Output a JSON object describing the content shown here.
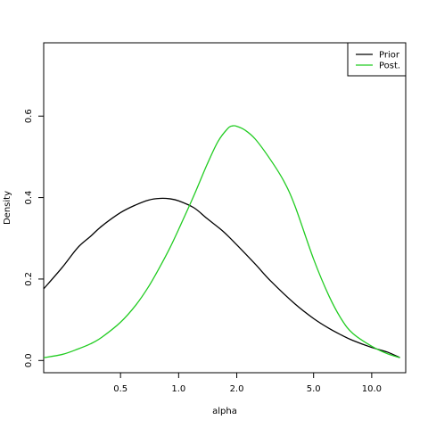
{
  "chart_data": {
    "type": "line",
    "title": "",
    "xlabel": "alpha",
    "ylabel": "Density",
    "x_scale": "log",
    "xlim": [
      0.2,
      15
    ],
    "ylim": [
      -0.03,
      0.78
    ],
    "x_ticks": [
      0.5,
      1.0,
      2.0,
      5.0,
      10.0
    ],
    "x_tick_labels": [
      "0.5",
      "1.0",
      "2.0",
      "5.0",
      "10.0"
    ],
    "y_ticks": [
      0.0,
      0.2,
      0.4,
      0.6
    ],
    "y_tick_labels": [
      "0.0",
      "0.2",
      "0.4",
      "0.6"
    ],
    "grid": false,
    "legend": {
      "position": "top-right",
      "entries": [
        "Prior",
        "Post."
      ]
    },
    "series": [
      {
        "name": "Prior",
        "color": "#000000",
        "x": [
          0.2,
          0.25,
          0.3,
          0.35,
          0.4,
          0.5,
          0.6,
          0.7,
          0.8,
          0.9,
          1.0,
          1.2,
          1.4,
          1.7,
          2.0,
          2.5,
          3.0,
          4.0,
          5.0,
          6.0,
          7.0,
          8.0,
          10.0,
          12.0,
          14.0
        ],
        "values": [
          0.176,
          0.229,
          0.277,
          0.305,
          0.33,
          0.363,
          0.382,
          0.394,
          0.398,
          0.397,
          0.392,
          0.375,
          0.349,
          0.317,
          0.284,
          0.236,
          0.195,
          0.139,
          0.103,
          0.079,
          0.062,
          0.049,
          0.032,
          0.021,
          0.007
        ]
      },
      {
        "name": "Post.",
        "color": "#22cc22",
        "x": [
          0.2,
          0.25,
          0.3,
          0.35,
          0.4,
          0.5,
          0.6,
          0.7,
          0.8,
          0.9,
          1.0,
          1.2,
          1.4,
          1.6,
          1.8,
          1.9,
          2.0,
          2.2,
          2.5,
          3.0,
          3.5,
          4.0,
          5.0,
          6.0,
          7.0,
          8.0,
          10.0,
          12.0,
          14.0
        ],
        "values": [
          0.007,
          0.015,
          0.028,
          0.041,
          0.057,
          0.094,
          0.136,
          0.182,
          0.23,
          0.276,
          0.322,
          0.405,
          0.48,
          0.538,
          0.57,
          0.576,
          0.575,
          0.566,
          0.543,
          0.492,
          0.441,
          0.38,
          0.249,
          0.159,
          0.1,
          0.066,
          0.035,
          0.017,
          0.007
        ]
      }
    ]
  }
}
